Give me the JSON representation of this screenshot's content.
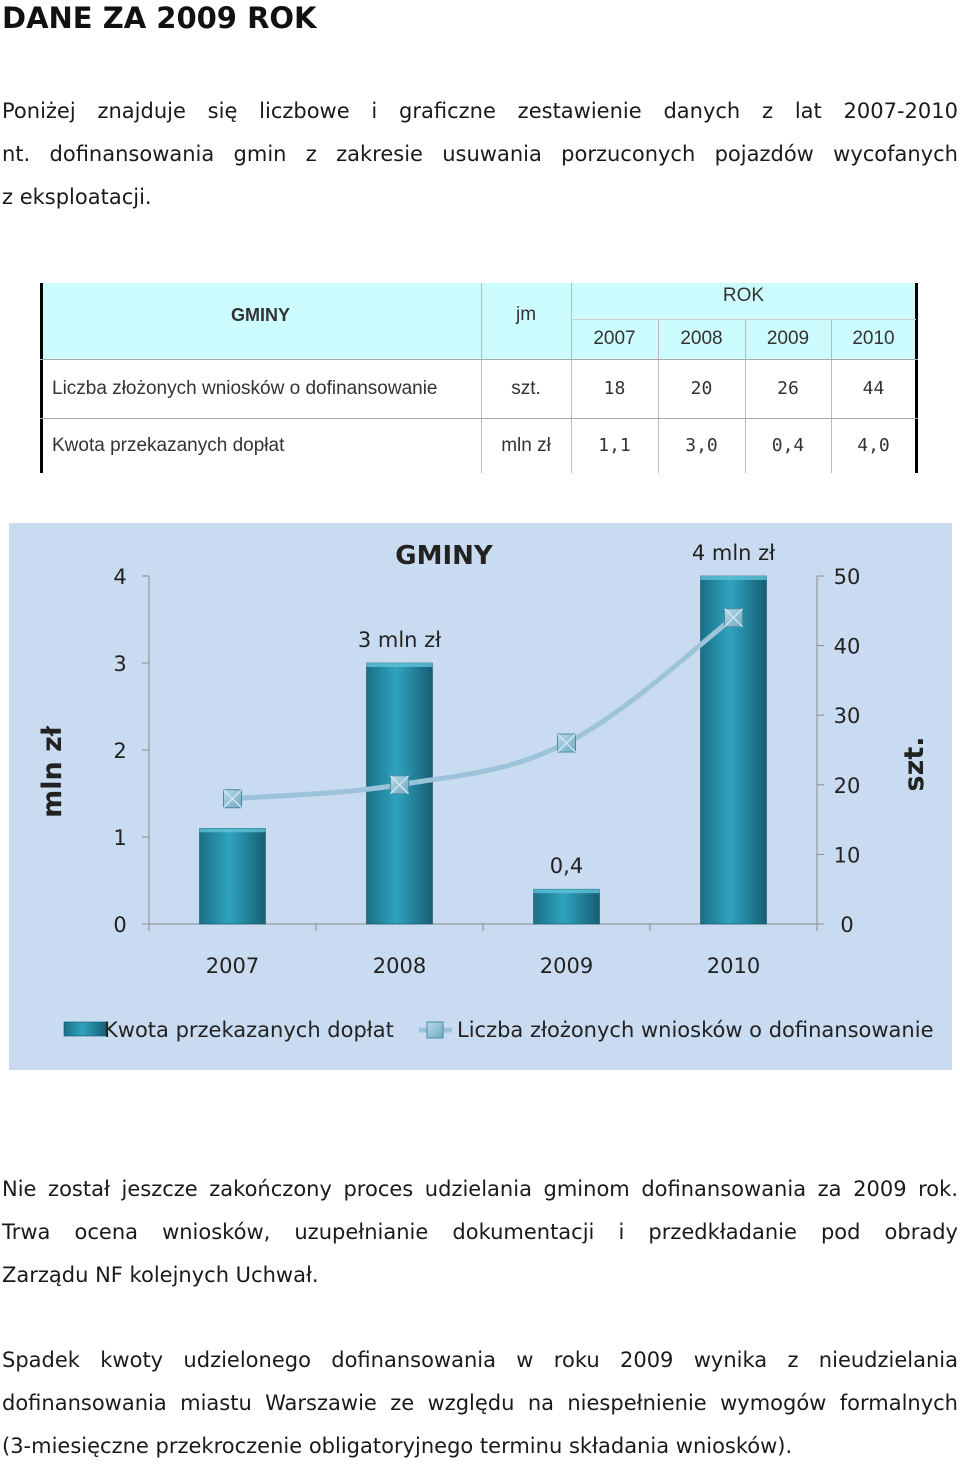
{
  "title": "DANE ZA 2009 ROK",
  "intro_lines": [
    "Poniżej znajduje się liczbowe i graficzne zestawienie danych z lat 2007-2010",
    "nt. dofinansowania gmin z zakresie usuwania porzuconych pojazdów wycofanych",
    "z eksploatacji."
  ],
  "table": {
    "header_gminy": "GMINY",
    "header_jm": "jm",
    "header_rok": "ROK",
    "years": [
      "2007",
      "2008",
      "2009",
      "2010"
    ],
    "rows": [
      {
        "label": "Liczba złożonych wniosków o dofinansowanie",
        "unit": "szt.",
        "values": [
          "18",
          "20",
          "26",
          "44"
        ]
      },
      {
        "label": "Kwota przekazanych dopłat",
        "unit": "mln zł",
        "values": [
          "1,1",
          "3,0",
          "0,4",
          "4,0"
        ]
      }
    ]
  },
  "chart_data": {
    "type": "bar",
    "title": "GMINY",
    "categories": [
      "2007",
      "2008",
      "2009",
      "2010"
    ],
    "series": [
      {
        "name": "Kwota przekazanych dopłat",
        "type": "bar",
        "axis": "left",
        "values": [
          1.1,
          3.0,
          0.4,
          4.0
        ],
        "color": "#1f8da6"
      },
      {
        "name": "Liczba złożonych wniosków o dofinansowanie",
        "type": "line",
        "axis": "right",
        "values": [
          18,
          20,
          26,
          44
        ],
        "color": "#9cc3d9"
      }
    ],
    "data_labels": [
      "",
      "3 mln zł",
      "0,4",
      "4 mln zł"
    ],
    "ylabel": "mln zł",
    "y2label": "szt.",
    "ylim": [
      0,
      4
    ],
    "y2lim": [
      0,
      50
    ],
    "yticks": [
      "0",
      "1",
      "2",
      "3",
      "4"
    ],
    "y2ticks": [
      "0",
      "10",
      "20",
      "30",
      "40",
      "50"
    ],
    "legend_position": "bottom",
    "background": "#c9dbf0"
  },
  "para2_lines": [
    "Nie został jeszcze zakończony proces udzielania gminom dofinansowania za 2009 rok.",
    "Trwa ocena wniosków, uzupełnianie dokumentacji i przedkładanie pod obrady",
    "Zarządu NF kolejnych Uchwał."
  ],
  "para3_lines": [
    "Spadek kwoty udzielonego dofinansowania w roku 2009 wynika z nieudzielania",
    "dofinansowania miastu Warszawie ze względu na niespełnienie wymogów formalnych",
    "(3-miesięczne przekroczenie obligatoryjnego terminu składania wniosków)."
  ]
}
